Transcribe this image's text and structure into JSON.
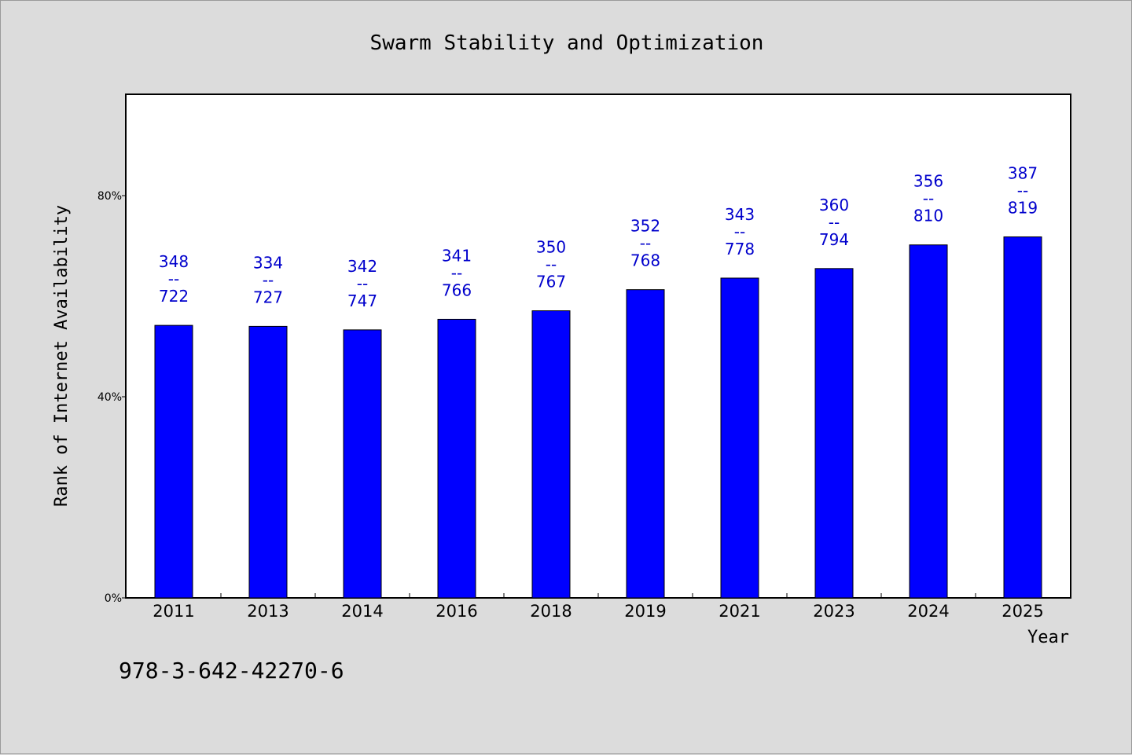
{
  "chart_data": {
    "type": "bar",
    "title": "Swarm Stability and Optimization",
    "xlabel": "Year",
    "ylabel": "Rank of Internet Availability",
    "categories": [
      "2011",
      "2013",
      "2014",
      "2016",
      "2018",
      "2019",
      "2021",
      "2023",
      "2024",
      "2025"
    ],
    "values": [
      54.2,
      54.0,
      53.3,
      55.4,
      57.1,
      61.3,
      63.6,
      65.5,
      70.2,
      71.8
    ],
    "value_unit": "%",
    "data_labels": [
      {
        "low": "348",
        "sep": "--",
        "high": "722"
      },
      {
        "low": "334",
        "sep": "--",
        "high": "727"
      },
      {
        "low": "342",
        "sep": "--",
        "high": "747"
      },
      {
        "low": "341",
        "sep": "--",
        "high": "766"
      },
      {
        "low": "350",
        "sep": "--",
        "high": "767"
      },
      {
        "low": "352",
        "sep": "--",
        "high": "768"
      },
      {
        "low": "343",
        "sep": "--",
        "high": "778"
      },
      {
        "low": "360",
        "sep": "--",
        "high": "794"
      },
      {
        "low": "356",
        "sep": "--",
        "high": "810"
      },
      {
        "low": "387",
        "sep": "--",
        "high": "819"
      }
    ],
    "yticks": [
      {
        "value": 0,
        "label": "0%"
      },
      {
        "value": 40,
        "label": "40%"
      },
      {
        "value": 80,
        "label": "80%"
      }
    ],
    "ylim": [
      0,
      100
    ],
    "grid": false,
    "legend": "none",
    "bar_color": "#0000ff",
    "label_color": "#0000cc"
  },
  "footer": {
    "isbn": "978-3-642-42270-6"
  }
}
